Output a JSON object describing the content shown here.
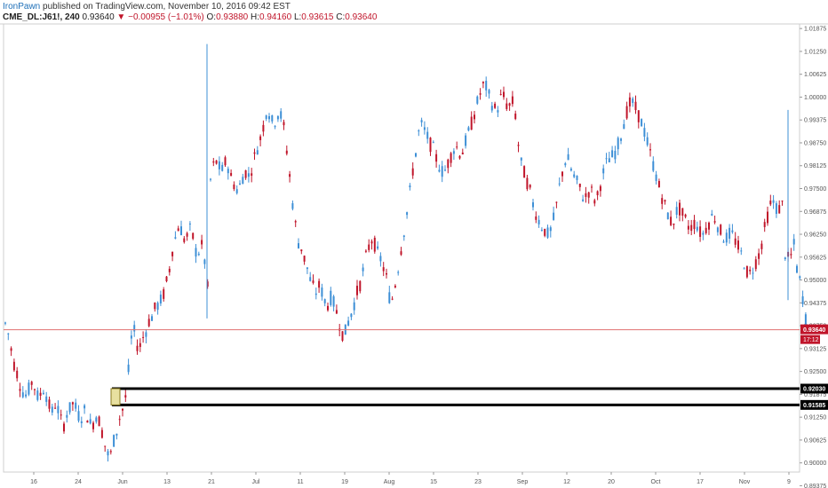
{
  "header": {
    "author": "IronPawn",
    "published_text": "published on TradingView.com, November 10, 2016 09:42 EST"
  },
  "symbol_bar": {
    "symbol": "CME_DL:J61!, 240",
    "last": "0.93640",
    "arrow": "▼",
    "change": "−0.00955 (−1.01%)",
    "open_label": "O:",
    "open": "0.93880",
    "high_label": "H:",
    "high": "0.94160",
    "low_label": "L:",
    "low": "0.93615",
    "close_label": "C:",
    "close": "0.93640"
  },
  "colors": {
    "up": "#3d8fd6",
    "down": "#c0152a",
    "price_line": "#e07070",
    "zone": "#000000",
    "grid": "#e6e6e6"
  },
  "chart_data": {
    "type": "candlestick",
    "title": "",
    "xlabel": "",
    "ylabel": "",
    "ylim": [
      0.8975,
      1.02
    ],
    "y_ticks": [
      "1.01875",
      "1.01250",
      "1.00625",
      "1.00000",
      "0.99375",
      "0.98750",
      "0.98125",
      "0.97500",
      "0.96875",
      "0.96250",
      "0.95625",
      "0.95000",
      "0.94375",
      "0.93750",
      "0.93125",
      "0.92500",
      "0.91875",
      "0.91250",
      "0.90625",
      "0.90000",
      "0.89375"
    ],
    "y_tick_values": [
      1.01875,
      1.0125,
      1.00625,
      1.0,
      0.99375,
      0.9875,
      0.98125,
      0.975,
      0.96875,
      0.9625,
      0.95625,
      0.95,
      0.94375,
      0.9375,
      0.93125,
      0.925,
      0.91875,
      0.9125,
      0.90625,
      0.9,
      0.89375
    ],
    "x_tick_labels": [
      "16",
      "24",
      "Jun",
      "13",
      "21",
      "Jul",
      "11",
      "19",
      "Aug",
      "15",
      "23",
      "Sep",
      "12",
      "20",
      "Oct",
      "17",
      "Nov",
      "9"
    ],
    "price_path": [
      [
        0.9395,
        0.934
      ],
      [
        0.933,
        0.925
      ],
      [
        0.926,
        0.92
      ],
      [
        0.92,
        0.918
      ],
      [
        0.919,
        0.923
      ],
      [
        0.922,
        0.917
      ],
      [
        0.918,
        0.921
      ],
      [
        0.92,
        0.914
      ],
      [
        0.913,
        0.917
      ],
      [
        0.916,
        0.91
      ],
      [
        0.909,
        0.915
      ],
      [
        0.914,
        0.917
      ],
      [
        0.916,
        0.912
      ],
      [
        0.912,
        0.915
      ],
      [
        0.914,
        0.9095
      ],
      [
        0.91,
        0.914
      ],
      [
        0.913,
        0.907
      ],
      [
        0.906,
        0.901
      ],
      [
        0.9005,
        0.908
      ],
      [
        0.907,
        0.914
      ],
      [
        0.913,
        0.9195
      ],
      [
        0.9205,
        0.9385
      ],
      [
        0.9375,
        0.9305
      ],
      [
        0.931,
        0.9355
      ],
      [
        0.935,
        0.94
      ],
      [
        0.939,
        0.943
      ],
      [
        0.9425,
        0.945
      ],
      [
        0.9445,
        0.951
      ],
      [
        0.9505,
        0.961
      ],
      [
        0.96,
        0.966
      ],
      [
        0.965,
        0.96
      ],
      [
        0.961,
        0.9645
      ],
      [
        0.9635,
        0.956
      ],
      [
        0.957,
        0.96
      ],
      [
        0.959,
        0.944
      ],
      [
        0.9755,
        0.983
      ],
      [
        0.983,
        0.98
      ],
      [
        0.979,
        0.983
      ],
      [
        0.9825,
        0.9765
      ],
      [
        0.977,
        0.974
      ],
      [
        0.9745,
        0.9795
      ],
      [
        0.98,
        0.978
      ],
      [
        0.979,
        0.985
      ],
      [
        0.985,
        0.99
      ],
      [
        0.99,
        0.998
      ],
      [
        0.997,
        0.992
      ],
      [
        0.9925,
        0.9965
      ],
      [
        0.9965,
        0.99
      ],
      [
        0.989,
        0.975
      ],
      [
        0.974,
        0.962
      ],
      [
        0.961,
        0.958
      ],
      [
        0.957,
        0.952
      ],
      [
        0.951,
        0.947
      ],
      [
        0.946,
        0.949
      ],
      [
        0.948,
        0.943
      ],
      [
        0.9425,
        0.946
      ],
      [
        0.945,
        0.94
      ],
      [
        0.9395,
        0.934
      ],
      [
        0.9345,
        0.94
      ],
      [
        0.9395,
        0.945
      ],
      [
        0.9455,
        0.95
      ],
      [
        0.9505,
        0.958
      ],
      [
        0.958,
        0.962
      ],
      [
        0.961,
        0.956
      ],
      [
        0.957,
        0.952
      ],
      [
        0.953,
        0.943
      ],
      [
        0.943,
        0.951
      ],
      [
        0.951,
        0.961
      ],
      [
        0.961,
        0.971
      ],
      [
        0.971,
        0.983
      ],
      [
        0.982,
        0.993
      ],
      [
        0.993,
        0.99
      ],
      [
        0.99,
        0.986
      ],
      [
        0.987,
        0.982
      ],
      [
        0.982,
        0.979
      ],
      [
        0.979,
        0.983
      ],
      [
        0.983,
        0.987
      ],
      [
        0.987,
        0.984
      ],
      [
        0.984,
        0.989
      ],
      [
        0.989,
        0.994
      ],
      [
        0.994,
        1.0
      ],
      [
        1.0,
        1.004
      ],
      [
        1.004,
        0.999
      ],
      [
        0.999,
        0.996
      ],
      [
        0.996,
        1.001
      ],
      [
        1.001,
        0.997
      ],
      [
        0.997,
        0.999
      ],
      [
        0.999,
        0.983
      ],
      [
        0.983,
        0.978
      ],
      [
        0.978,
        0.973
      ],
      [
        0.972,
        0.967
      ],
      [
        0.967,
        0.964
      ],
      [
        0.964,
        0.962
      ],
      [
        0.962,
        0.968
      ],
      [
        0.968,
        0.978
      ],
      [
        0.978,
        0.984
      ],
      [
        0.984,
        0.979
      ],
      [
        0.979,
        0.976
      ],
      [
        0.976,
        0.972
      ],
      [
        0.972,
        0.975
      ],
      [
        0.975,
        0.971
      ],
      [
        0.971,
        0.978
      ],
      [
        0.978,
        0.983
      ],
      [
        0.983,
        0.984
      ],
      [
        0.984,
        0.988
      ],
      [
        0.988,
        0.995
      ],
      [
        0.995,
        0.999
      ],
      [
        0.999,
        0.996
      ],
      [
        0.996,
        0.992
      ],
      [
        0.992,
        0.986
      ],
      [
        0.986,
        0.98
      ],
      [
        0.98,
        0.974
      ],
      [
        0.974,
        0.969
      ],
      [
        0.969,
        0.965
      ],
      [
        0.965,
        0.97
      ],
      [
        0.97,
        0.967
      ],
      [
        0.967,
        0.964
      ],
      [
        0.964,
        0.966
      ],
      [
        0.966,
        0.962
      ],
      [
        0.962,
        0.965
      ],
      [
        0.965,
        0.968
      ],
      [
        0.968,
        0.964
      ],
      [
        0.964,
        0.961
      ],
      [
        0.961,
        0.963
      ],
      [
        0.963,
        0.96
      ],
      [
        0.96,
        0.956
      ],
      [
        0.956,
        0.951
      ],
      [
        0.951,
        0.954
      ],
      [
        0.954,
        0.958
      ],
      [
        0.958,
        0.966
      ],
      [
        0.966,
        0.972
      ],
      [
        0.972,
        0.969
      ],
      [
        0.969,
        0.971
      ],
      [
        0.958,
        0.955
      ],
      [
        0.955,
        0.961
      ],
      [
        0.955,
        0.948
      ],
      [
        0.948,
        0.9364
      ]
    ],
    "wick_spikes": [
      [
        0.9395,
        1.0145
      ],
      [
        0.9445,
        0.9965
      ]
    ],
    "annotations": {
      "current_price": {
        "value": 0.9364,
        "label": "0.93640",
        "countdown": "17:12"
      },
      "zone_top": {
        "value": 0.9203,
        "label": "0.92030"
      },
      "zone_bottom": {
        "value": 0.91585,
        "label": "0.91585"
      }
    }
  }
}
